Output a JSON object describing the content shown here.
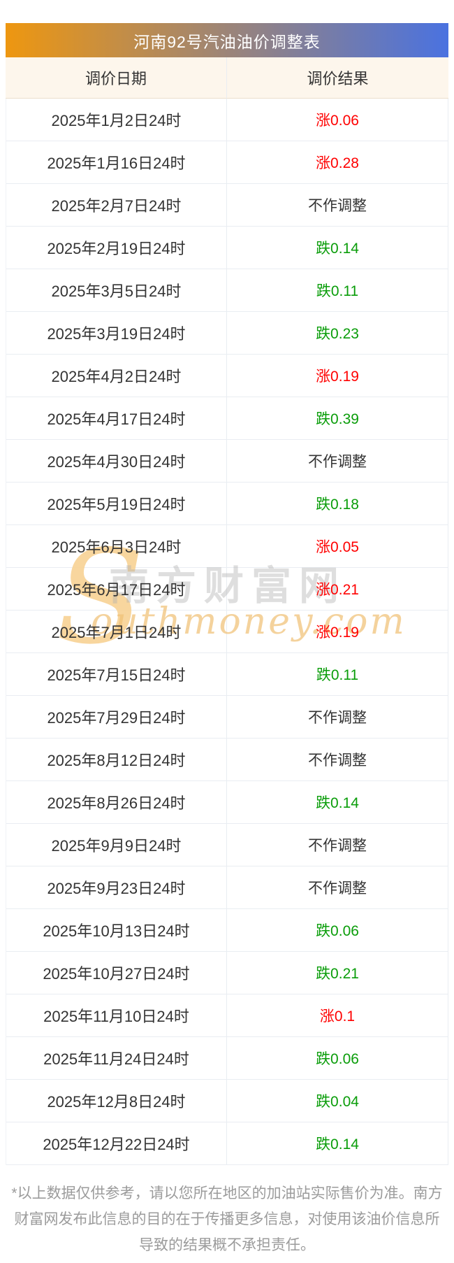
{
  "header": {
    "title": "河南92号汽油油价调整表",
    "gradient_start": "#ee9710",
    "gradient_end": "#4a72e0",
    "text_color": "#ffffff"
  },
  "table": {
    "columns": [
      {
        "label": "调价日期"
      },
      {
        "label": "调价结果"
      }
    ],
    "header_bg": "#fdf6ec",
    "header_text_color": "#ff8e0e",
    "trend_colors": {
      "up": "#ff0000",
      "down": "#0a9d0a",
      "none": "#333333"
    },
    "rows": [
      {
        "date": "2025年1月2日24时",
        "result": "涨0.06",
        "trend": "up"
      },
      {
        "date": "2025年1月16日24时",
        "result": "涨0.28",
        "trend": "up"
      },
      {
        "date": "2025年2月7日24时",
        "result": "不作调整",
        "trend": "none"
      },
      {
        "date": "2025年2月19日24时",
        "result": "跌0.14",
        "trend": "down"
      },
      {
        "date": "2025年3月5日24时",
        "result": "跌0.11",
        "trend": "down"
      },
      {
        "date": "2025年3月19日24时",
        "result": "跌0.23",
        "trend": "down"
      },
      {
        "date": "2025年4月2日24时",
        "result": "涨0.19",
        "trend": "up"
      },
      {
        "date": "2025年4月17日24时",
        "result": "跌0.39",
        "trend": "down"
      },
      {
        "date": "2025年4月30日24时",
        "result": "不作调整",
        "trend": "none"
      },
      {
        "date": "2025年5月19日24时",
        "result": "跌0.18",
        "trend": "down"
      },
      {
        "date": "2025年6月3日24时",
        "result": "涨0.05",
        "trend": "up"
      },
      {
        "date": "2025年6月17日24时",
        "result": "涨0.21",
        "trend": "up"
      },
      {
        "date": "2025年7月1日24时",
        "result": "涨0.19",
        "trend": "up"
      },
      {
        "date": "2025年7月15日24时",
        "result": "跌0.11",
        "trend": "down"
      },
      {
        "date": "2025年7月29日24时",
        "result": "不作调整",
        "trend": "none"
      },
      {
        "date": "2025年8月12日24时",
        "result": "不作调整",
        "trend": "none"
      },
      {
        "date": "2025年8月26日24时",
        "result": "跌0.14",
        "trend": "down"
      },
      {
        "date": "2025年9月9日24时",
        "result": "不作调整",
        "trend": "none"
      },
      {
        "date": "2025年9月23日24时",
        "result": "不作调整",
        "trend": "none"
      },
      {
        "date": "2025年10月13日24时",
        "result": "跌0.06",
        "trend": "down"
      },
      {
        "date": "2025年10月27日24时",
        "result": "跌0.21",
        "trend": "down"
      },
      {
        "date": "2025年11月10日24时",
        "result": "涨0.1",
        "trend": "up"
      },
      {
        "date": "2025年11月24日24时",
        "result": "跌0.06",
        "trend": "down"
      },
      {
        "date": "2025年12月8日24时",
        "result": "跌0.04",
        "trend": "down"
      },
      {
        "date": "2025年12月22日24时",
        "result": "跌0.14",
        "trend": "down"
      }
    ]
  },
  "watermark": {
    "swoosh": "S",
    "cn_text": "南方财富网",
    "en_text": "outhmoney.com",
    "swoosh_color": "#f7d194",
    "cn_color": "#dcdcdc",
    "en_color": "#f0c076"
  },
  "footer": {
    "disclaimer": "*以上数据仅供参考，请以您所在地区的加油站实际售价为准。南方财富网发布此信息的目的在于传播更多信息，对使用该油价信息所导致的结果概不承担责任。",
    "text_color": "#9b9b9b"
  }
}
